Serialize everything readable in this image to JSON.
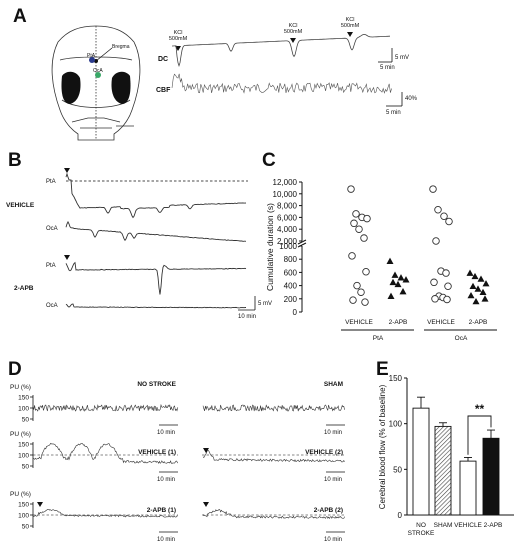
{
  "panels": {
    "a": "A",
    "b": "B",
    "c": "C",
    "d": "D",
    "e": "E"
  },
  "panel_a": {
    "skull": {
      "pta": "PtA",
      "oca": "OcA",
      "bregma": "Bregma"
    },
    "kcl_label_line1": "KCl",
    "kcl_label_line2": "500mM",
    "dc_label": "DC",
    "cbf_label": "CBF",
    "dc_scale_v": "5 mV",
    "dc_scale_t": "5 min",
    "cbf_scale_v": "40%",
    "cbf_scale_t": "5 min"
  },
  "panel_b": {
    "vehicle": "VEHICLE",
    "apb": "2-APB",
    "pta": "PtA",
    "oca": "OcA",
    "scale_v": "5 mV",
    "scale_t": "10 min"
  },
  "chart_data": [
    {
      "type": "scatter",
      "panel": "C",
      "ylabel": "Cumulative duration (s)",
      "yticks_upper": [
        "12,000",
        "10,000",
        "8,000",
        "6,000",
        "4,000",
        "2,000"
      ],
      "yticks_lower": [
        "1000",
        "800",
        "600",
        "400",
        "200",
        "0"
      ],
      "group_labels": [
        "PtA",
        "OcA"
      ],
      "categories": [
        "VEHICLE",
        "2-APB",
        "VEHICLE",
        "2-APB"
      ],
      "series": [
        {
          "category": "VEHICLE",
          "group": "PtA",
          "marker": "open-circle",
          "values": [
            10800,
            6600,
            6000,
            5800,
            5000,
            4000,
            2500,
            850,
            610,
            400,
            300,
            180,
            150
          ]
        },
        {
          "category": "2-APB",
          "group": "PtA",
          "marker": "filled-triangle",
          "values": [
            770,
            560,
            520,
            490,
            450,
            420,
            310,
            240
          ]
        },
        {
          "category": "VEHICLE",
          "group": "OcA",
          "marker": "open-circle",
          "values": [
            10800,
            7300,
            6200,
            5300,
            2000,
            620,
            590,
            450,
            390,
            240,
            220,
            200,
            190
          ]
        },
        {
          "category": "2-APB",
          "group": "OcA",
          "marker": "filled-triangle",
          "values": [
            590,
            540,
            500,
            430,
            390,
            350,
            300,
            250,
            200,
            160
          ]
        }
      ]
    },
    {
      "type": "bar",
      "panel": "E",
      "ylabel": "Cerebral blood flow  (% of baseline)",
      "categories": [
        "NO STROKE",
        "SHAM",
        "VEHICLE",
        "2-APB"
      ],
      "values": [
        117,
        97,
        59,
        84
      ],
      "errors": [
        12,
        4,
        4,
        9
      ],
      "ylim": [
        0,
        150
      ],
      "yticks": [
        "0",
        "50",
        "100",
        "150"
      ],
      "significance": "**"
    }
  ],
  "panel_d": {
    "pu": "PU (%)",
    "yticks": [
      "150",
      "100",
      "50"
    ],
    "labels": {
      "no_stroke": "NO STROKE",
      "sham": "SHAM",
      "veh1": "VEHICLE (1)",
      "veh2": "VEHICLE (2)",
      "apb1": "2-APB (1)",
      "apb2": "2-APB (2)"
    },
    "scale_t": "10 min"
  },
  "panel_e_labels": {
    "no": "NO",
    "stroke": "STROKE",
    "sham": "SHAM",
    "vehicle": "VEHICLE",
    "apb": "2-APB"
  }
}
